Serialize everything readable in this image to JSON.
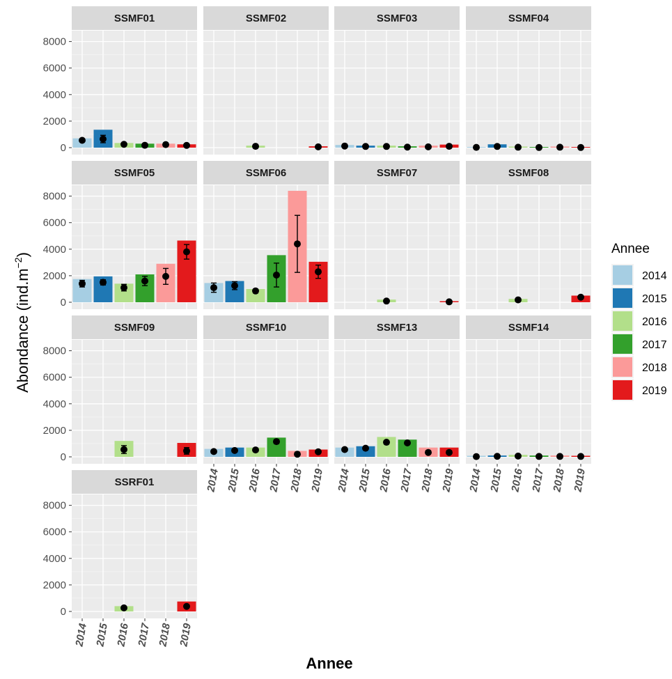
{
  "chart_data": {
    "type": "bar",
    "xlabel": "Annee",
    "ylabel": "Abondance (ind.m",
    "ylabel_sup": "−2",
    "ylabel_close": ")",
    "ylim": [
      0,
      8400
    ],
    "yticks": [
      0,
      2000,
      4000,
      6000,
      8000
    ],
    "categories": [
      "2014",
      "2015",
      "2016",
      "2017",
      "2018",
      "2019"
    ],
    "legend": {
      "title": "Annee",
      "items": [
        {
          "label": "2014",
          "color": "#A6CEE3"
        },
        {
          "label": "2015",
          "color": "#1F78B4"
        },
        {
          "label": "2016",
          "color": "#B2DF8A"
        },
        {
          "label": "2017",
          "color": "#33A02C"
        },
        {
          "label": "2018",
          "color": "#FB9A99"
        },
        {
          "label": "2019",
          "color": "#E31A1C"
        }
      ]
    },
    "panels": [
      {
        "name": "SSMF01",
        "bars": [
          700,
          1350,
          350,
          300,
          300,
          250
        ],
        "means": [
          550,
          650,
          250,
          180,
          230,
          170
        ],
        "err": [
          80,
          280,
          60,
          50,
          60,
          40
        ]
      },
      {
        "name": "SSMF02",
        "bars": [
          null,
          null,
          150,
          null,
          null,
          100
        ],
        "means": [
          null,
          null,
          100,
          null,
          null,
          60
        ],
        "err": [
          null,
          null,
          40,
          null,
          null,
          30
        ]
      },
      {
        "name": "SSMF03",
        "bars": [
          200,
          150,
          150,
          100,
          150,
          230
        ],
        "means": [
          120,
          90,
          90,
          40,
          60,
          100
        ],
        "err": [
          40,
          30,
          30,
          20,
          30,
          40
        ]
      },
      {
        "name": "SSMF04",
        "bars": [
          50,
          250,
          80,
          50,
          80,
          50
        ],
        "means": [
          20,
          90,
          30,
          10,
          30,
          10
        ],
        "err": [
          10,
          40,
          15,
          10,
          15,
          10
        ]
      },
      {
        "name": "SSMF05",
        "bars": [
          1750,
          1950,
          1400,
          2100,
          2900,
          4650
        ],
        "means": [
          1400,
          1500,
          1100,
          1600,
          1950,
          3800
        ],
        "err": [
          250,
          200,
          250,
          350,
          600,
          550
        ]
      },
      {
        "name": "SSMF06",
        "bars": [
          1450,
          1600,
          1000,
          3550,
          8400,
          3050
        ],
        "means": [
          1100,
          1250,
          850,
          2050,
          4400,
          2300
        ],
        "err": [
          350,
          300,
          150,
          900,
          2150,
          500
        ]
      },
      {
        "name": "SSMF07",
        "bars": [
          null,
          null,
          200,
          null,
          null,
          80
        ],
        "means": [
          null,
          null,
          90,
          null,
          null,
          30
        ],
        "err": [
          null,
          null,
          30,
          null,
          null,
          20
        ]
      },
      {
        "name": "SSMF08",
        "bars": [
          null,
          null,
          250,
          null,
          null,
          500
        ],
        "means": [
          null,
          null,
          180,
          null,
          null,
          380
        ],
        "err": [
          null,
          null,
          40,
          null,
          null,
          80
        ]
      },
      {
        "name": "SSMF09",
        "bars": [
          null,
          null,
          1200,
          null,
          null,
          1050
        ],
        "means": [
          null,
          null,
          550,
          null,
          null,
          450
        ],
        "err": [
          null,
          null,
          300,
          null,
          null,
          250
        ]
      },
      {
        "name": "SSMF10",
        "bars": [
          600,
          700,
          700,
          1450,
          450,
          550
        ],
        "means": [
          400,
          480,
          520,
          1150,
          200,
          380
        ],
        "err": [
          60,
          70,
          80,
          150,
          50,
          60
        ]
      },
      {
        "name": "SSMF13",
        "bars": [
          700,
          800,
          1500,
          1300,
          700,
          700
        ],
        "means": [
          550,
          650,
          1100,
          1050,
          330,
          330
        ],
        "err": [
          70,
          80,
          120,
          120,
          60,
          60
        ]
      },
      {
        "name": "SSMF14",
        "bars": [
          80,
          100,
          150,
          100,
          100,
          80
        ],
        "means": [
          20,
          40,
          60,
          30,
          30,
          30
        ],
        "err": [
          10,
          15,
          20,
          10,
          10,
          10
        ]
      },
      {
        "name": "SSRF01",
        "bars": [
          null,
          null,
          400,
          null,
          null,
          750
        ],
        "means": [
          null,
          null,
          270,
          null,
          null,
          380
        ],
        "err": [
          null,
          null,
          50,
          null,
          null,
          70
        ]
      }
    ]
  }
}
